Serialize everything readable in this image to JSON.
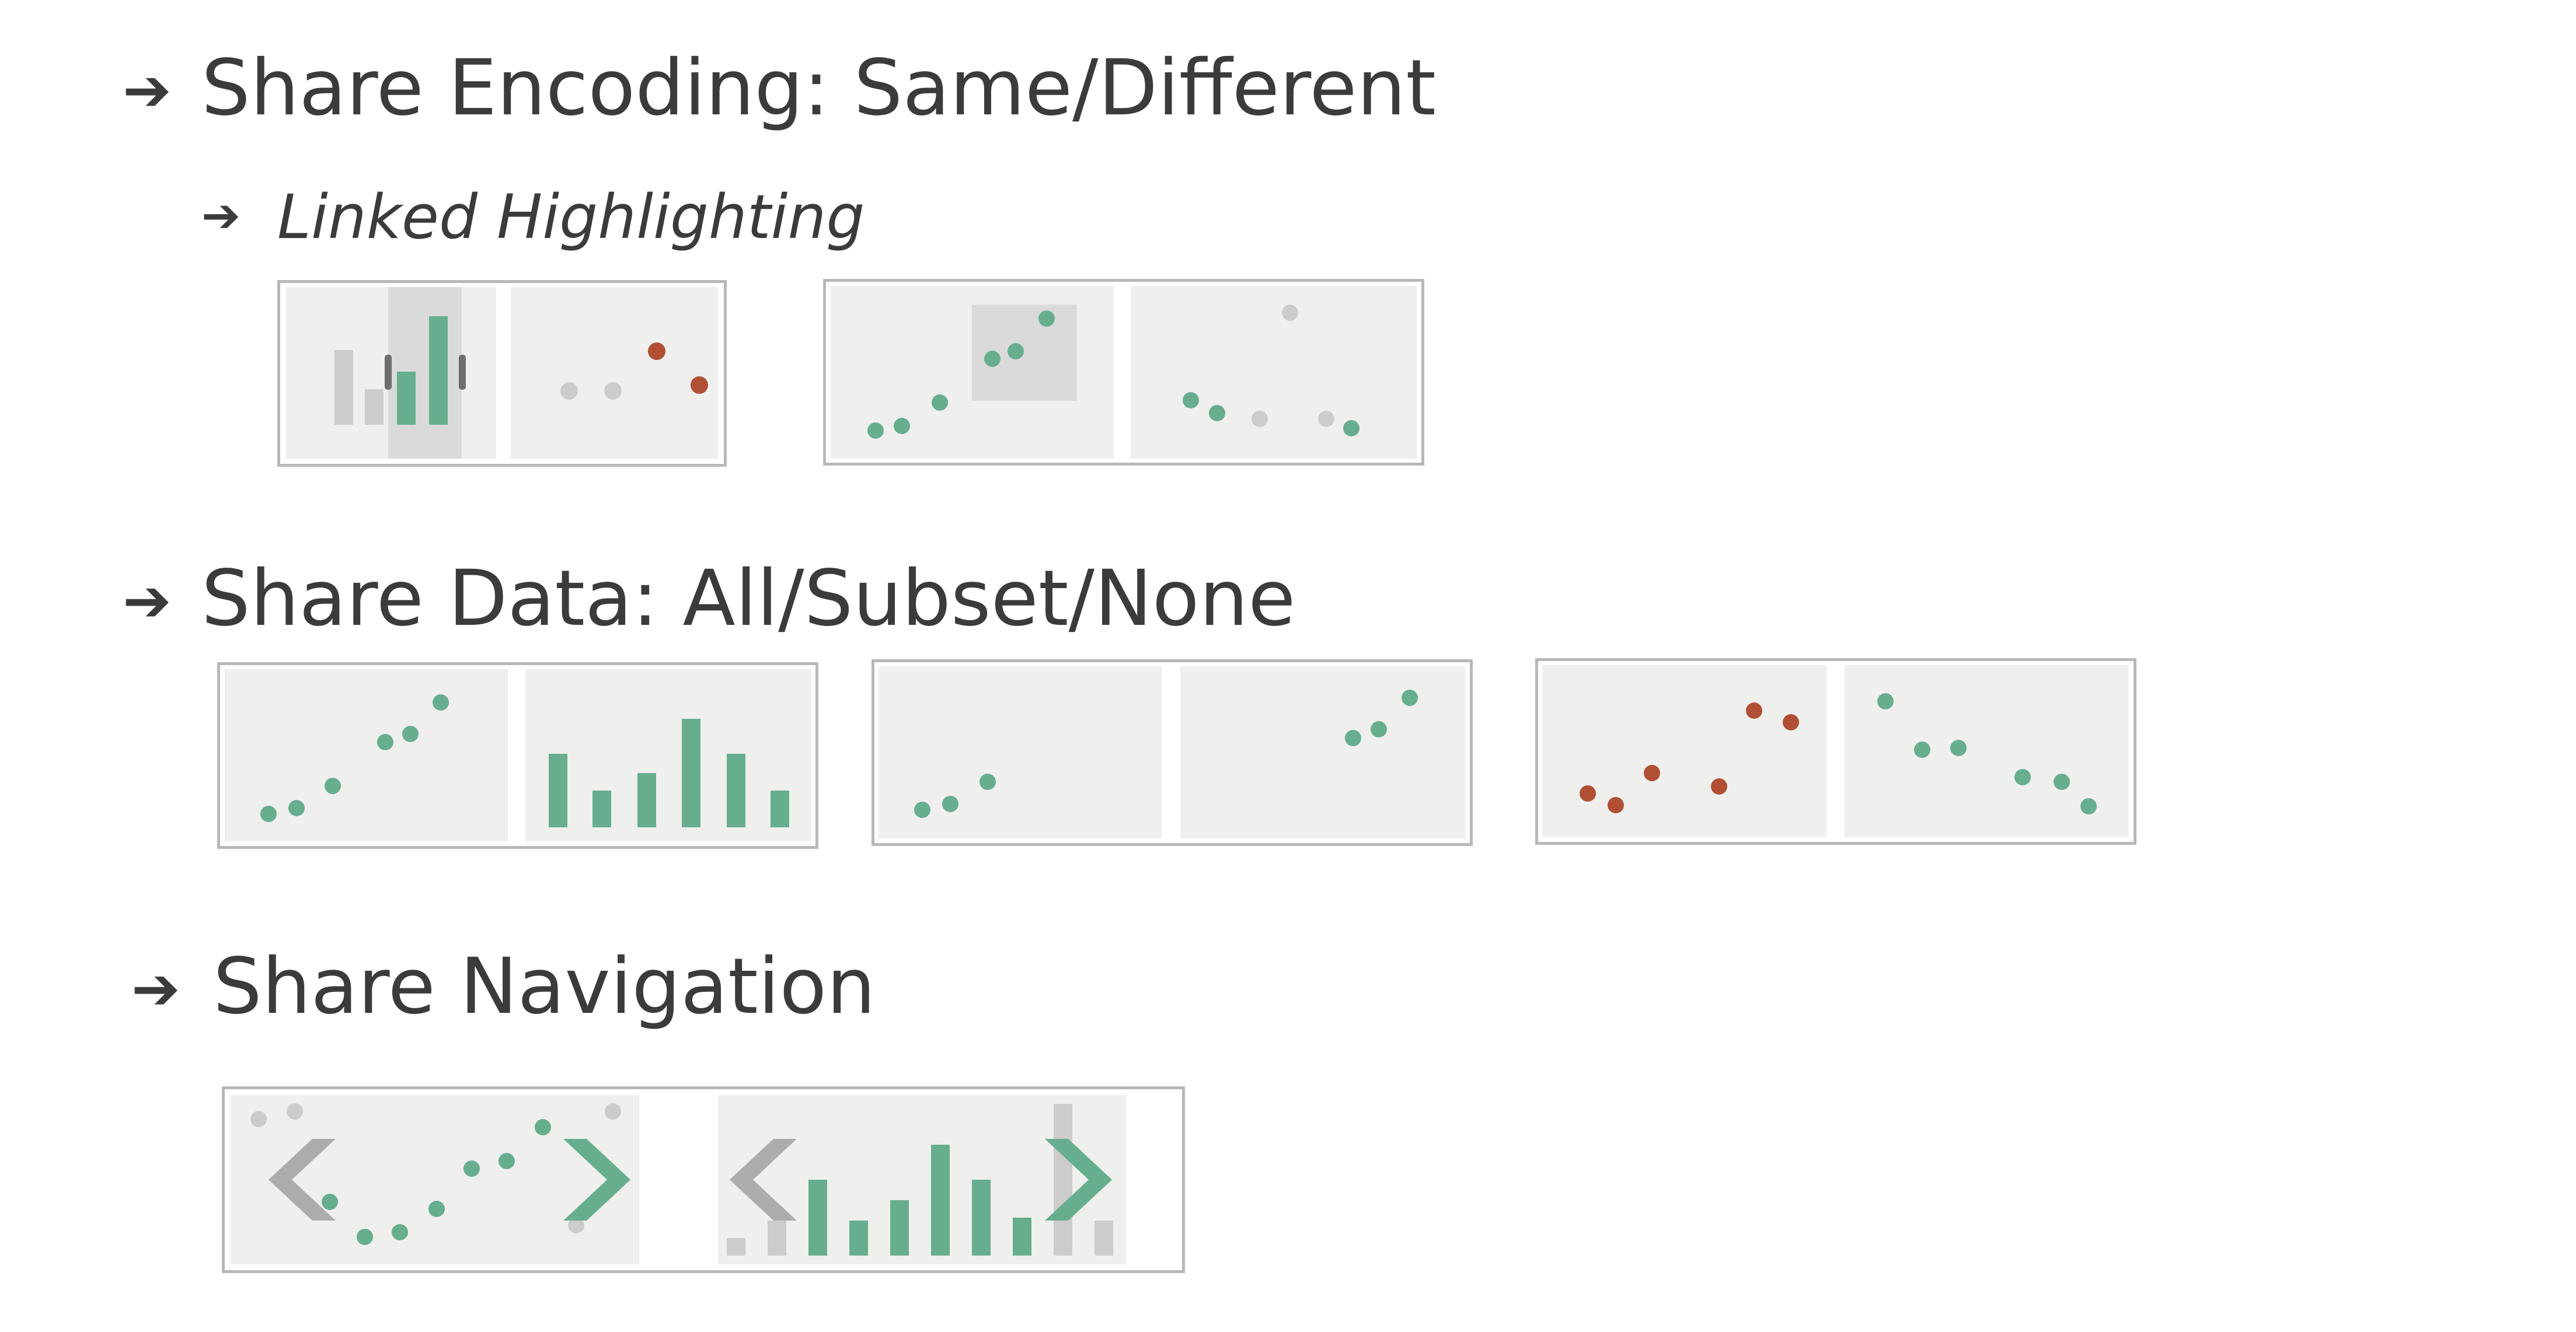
{
  "headings": {
    "share_encoding": "Share Encoding: Same/Different",
    "linked_highlighting": "Linked Highlighting",
    "share_data": "Share Data: All/Subset/None",
    "share_navigation": "Share Navigation"
  },
  "icons": {
    "bullet": "right-arrow-icon",
    "navigate_left": "chevron-left-icon",
    "navigate_right": "chevron-right-icon"
  },
  "colors": {
    "panel": "#efefee",
    "selection": "#dadada",
    "green": "#67ae8e",
    "red": "#b04f34",
    "gray_mark": "#cccccc",
    "text": "#3b3b3b"
  }
}
